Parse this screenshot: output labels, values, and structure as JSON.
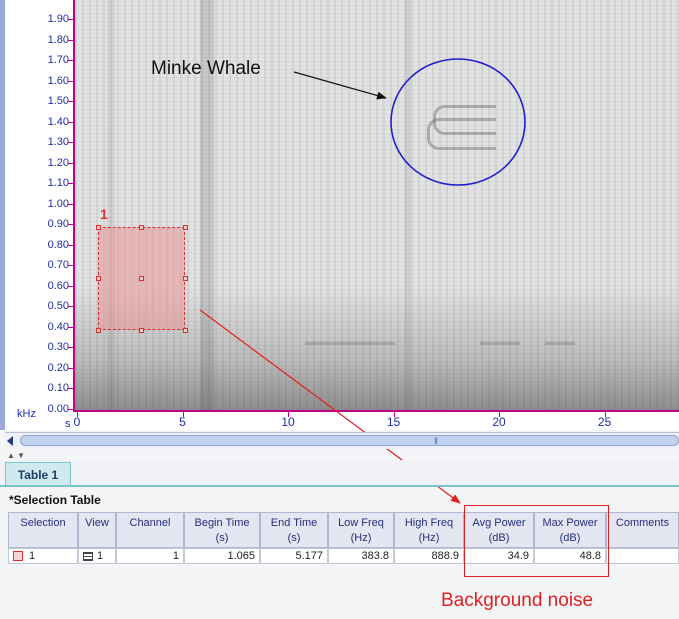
{
  "spectrogram": {
    "y_axis": {
      "unit": "kHz",
      "ticks": [
        "1.90",
        "1.80",
        "1.70",
        "1.60",
        "1.50",
        "1.40",
        "1.30",
        "1.20",
        "1.10",
        "1.00",
        "0.90",
        "0.80",
        "0.70",
        "0.60",
        "0.50",
        "0.40",
        "0.30",
        "0.20",
        "0.10",
        "0.00"
      ]
    },
    "x_axis": {
      "unit": "s",
      "ticks": [
        "0",
        "5",
        "10",
        "15",
        "20",
        "25"
      ]
    },
    "selection_number": "1",
    "annotation_text": "Minke Whale",
    "colors": {
      "axis": "#c0008c",
      "selection": "#d03434",
      "circle": "#2020d0",
      "annotation": "#e02020"
    }
  },
  "tabs": [
    {
      "label": "Table 1"
    }
  ],
  "selection_table": {
    "title": "*Selection Table",
    "headers": [
      {
        "line1": "Selection",
        "line2": ""
      },
      {
        "line1": "View",
        "line2": ""
      },
      {
        "line1": "Channel",
        "line2": ""
      },
      {
        "line1": "Begin Time",
        "line2": "(s)"
      },
      {
        "line1": "End Time",
        "line2": "(s)"
      },
      {
        "line1": "Low Freq",
        "line2": "(Hz)"
      },
      {
        "line1": "High Freq",
        "line2": "(Hz)"
      },
      {
        "line1": "Avg Power",
        "line2": "(dB)"
      },
      {
        "line1": "Max Power",
        "line2": "(dB)"
      },
      {
        "line1": "Comments",
        "line2": ""
      }
    ],
    "rows": [
      {
        "selection": "1",
        "view": "1",
        "channel": "1",
        "begin_time": "1.065",
        "end_time": "5.177",
        "low_freq": "383.8",
        "high_freq": "888.9",
        "avg_power": "34.9",
        "max_power": "48.8",
        "comments": ""
      }
    ]
  },
  "annotations": {
    "background_noise": "Background noise"
  }
}
